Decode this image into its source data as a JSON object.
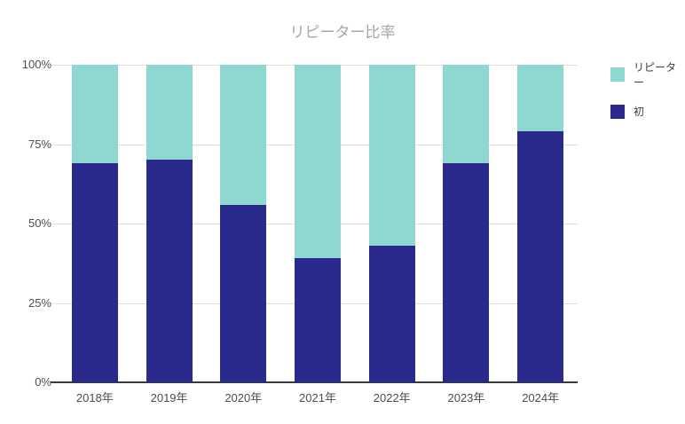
{
  "title": "リピーター比率",
  "legend": {
    "items": [
      {
        "label": "リピーター",
        "color": "#8fd8d2"
      },
      {
        "label": "初",
        "color": "#2a298c"
      }
    ]
  },
  "colors": {
    "repeater": "#8fd8d2",
    "first_time": "#2a298c",
    "grid": "#e0e0e0",
    "axis": "#3a3a3a",
    "title": "#a7a7a7",
    "tick_label": "#4d4d4d",
    "legend_label": "#3c3c3c",
    "background": "#ffffff"
  },
  "chart_data": {
    "type": "bar",
    "stacked": true,
    "title": "リピーター比率",
    "categories": [
      "2018年",
      "2019年",
      "2020年",
      "2021年",
      "2022年",
      "2023年",
      "2024年"
    ],
    "series": [
      {
        "name": "初",
        "color": "#2a298c",
        "values": [
          69,
          70,
          56,
          39,
          43,
          69,
          79
        ]
      },
      {
        "name": "リピーター",
        "color": "#8fd8d2",
        "values": [
          31,
          30,
          44,
          61,
          57,
          31,
          21
        ]
      }
    ],
    "xlabel": "",
    "ylabel": "",
    "ylim": [
      0,
      100
    ],
    "y_ticks": [
      "0%",
      "25%",
      "50%",
      "75%",
      "100%"
    ],
    "grid": true,
    "legend_position": "top-right"
  }
}
